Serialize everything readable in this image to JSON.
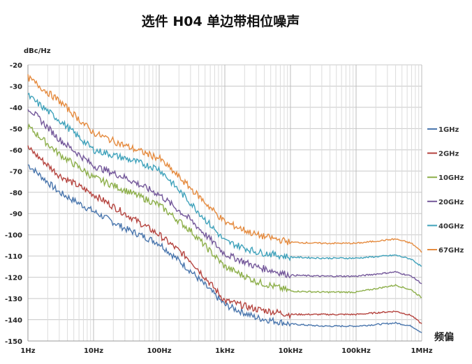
{
  "chart_data": {
    "type": "line",
    "title": "选件 H04 单边带相位噪声",
    "ylabel": "dBc/Hz",
    "xlabel": "频偏",
    "xscale": "log",
    "xlim": [
      1,
      1000000
    ],
    "ylim": [
      -150,
      -20
    ],
    "grid": true,
    "legend_position": "right",
    "x_tick_labels": [
      "1Hz",
      "10Hz",
      "100Hz",
      "1kHz",
      "10kHz",
      "100kHz",
      "1MHz"
    ],
    "y_ticks": [
      -20,
      -30,
      -40,
      -50,
      -60,
      -70,
      -80,
      -90,
      -100,
      -110,
      -120,
      -130,
      -140,
      -150
    ],
    "x": [
      1,
      3,
      10,
      30,
      100,
      300,
      1000,
      3000,
      10000,
      30000,
      100000,
      400000,
      700000,
      1000000
    ],
    "series": [
      {
        "name": "1GHz",
        "color": "#4a76ad",
        "values": [
          -67,
          -80,
          -89,
          -97,
          -104,
          -117,
          -133,
          -139,
          -142,
          -143,
          -143,
          -141.5,
          -143,
          -146
        ]
      },
      {
        "name": "2GHz",
        "color": "#b5443f",
        "values": [
          -59,
          -72,
          -81,
          -90,
          -100,
          -112,
          -131,
          -135,
          -137.5,
          -137.5,
          -137.5,
          -136,
          -138,
          -142
        ]
      },
      {
        "name": "10GHz",
        "color": "#8daf4a",
        "values": [
          -49,
          -62,
          -73,
          -79,
          -86,
          -98,
          -115,
          -122,
          -126.5,
          -127,
          -127,
          -123.7,
          -126,
          -129.6
        ]
      },
      {
        "name": "20GHz",
        "color": "#74589a",
        "values": [
          -40,
          -55,
          -67.5,
          -73,
          -81,
          -93,
          -109,
          -115,
          -119,
          -119.5,
          -119.5,
          -117.5,
          -119.5,
          -123
        ]
      },
      {
        "name": "40GHz",
        "color": "#3fa2bb",
        "values": [
          -34.5,
          -46,
          -60,
          -64,
          -69,
          -85,
          -103,
          -108,
          -110.5,
          -111,
          -111,
          -109.6,
          -111.5,
          -115
        ]
      },
      {
        "name": "67GHz",
        "color": "#e58b3f",
        "values": [
          -26,
          -37,
          -52,
          -58,
          -64,
          -78,
          -94,
          -100,
          -103.5,
          -104,
          -104,
          -102,
          -104,
          -108
        ]
      }
    ]
  }
}
